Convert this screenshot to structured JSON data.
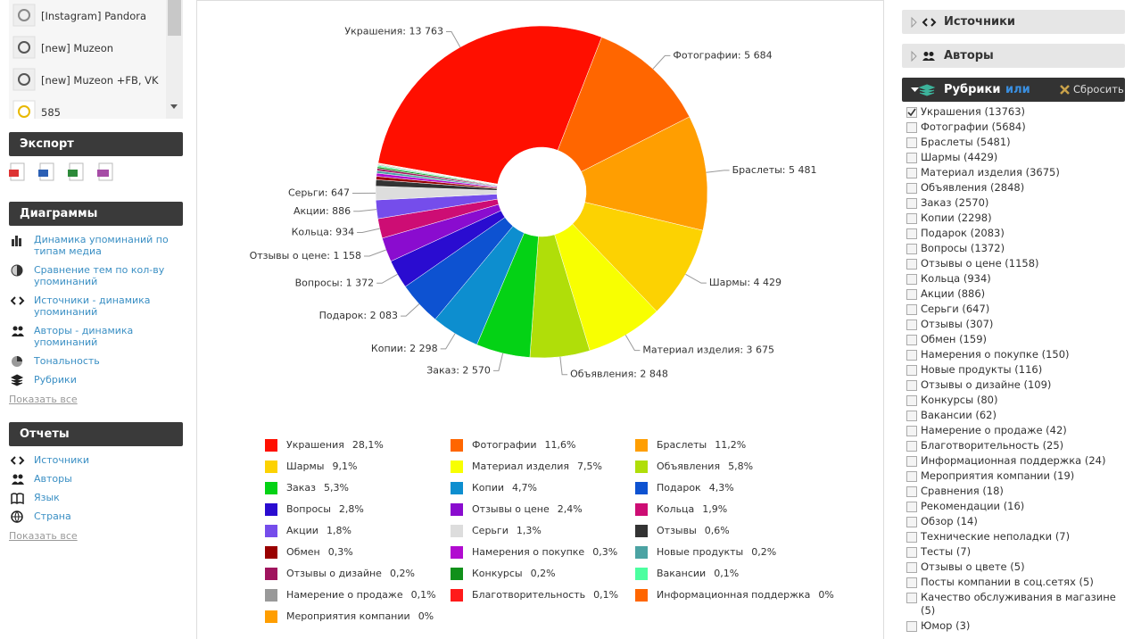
{
  "sidebar": {
    "sources": [
      "[Instagram] Pandora",
      "[new] Muzeon",
      "[new] Muzeon +FB, VK",
      "585"
    ],
    "export": {
      "title": "Экспорт"
    },
    "charts": {
      "title": "Диаграммы",
      "links": [
        "Динамика упоминаний по типам медиа",
        "Сравнение тем по кол-ву упоминаний",
        "Источники - динамика упоминаний",
        "Авторы - динамика упоминаний",
        "Тональность",
        "Рубрики"
      ],
      "show_all": "Показать все"
    },
    "reports": {
      "title": "Отчеты",
      "links": [
        "Источники",
        "Авторы",
        "Язык",
        "Страна"
      ],
      "show_all": "Показать все"
    }
  },
  "filters": {
    "sources": "Источники",
    "authors": "Авторы",
    "rubrics": {
      "title": "Рубрики",
      "mode": "или",
      "reset": "Сбросить",
      "checked": [
        0
      ],
      "items": [
        "Украшения (13763)",
        "Фотографии (5684)",
        "Браслеты (5481)",
        "Шармы (4429)",
        "Материал изделия (3675)",
        "Объявления (2848)",
        "Заказ (2570)",
        "Копии (2298)",
        "Подарок (2083)",
        "Вопросы (1372)",
        "Отзывы о цене (1158)",
        "Кольца (934)",
        "Акции (886)",
        "Серьги (647)",
        "Отзывы (307)",
        "Обмен (159)",
        "Намерения о покупке (150)",
        "Новые продукты (116)",
        "Отзывы о дизайне (109)",
        "Конкурсы  (80)",
        "Вакансии (62)",
        "Намерение о продаже (42)",
        "Благотворительность (25)",
        "Информационная поддержка (24)",
        "Мероприятия компании (19)",
        "Сравнения (18)",
        "Рекомендации (16)",
        "Обзор (14)",
        "Технические неполадки (7)",
        "Тесты (7)",
        "Отзывы о цвете (5)",
        "Посты компании в соц.сетях (5)",
        "Качество обслуживания в магазине (5)",
        "Юмор (3)"
      ]
    }
  },
  "chart_data": {
    "type": "pie",
    "donut": true,
    "categories": [
      "Украшения",
      "Фотографии",
      "Браслеты",
      "Шармы",
      "Материал изделия",
      "Объявления",
      "Заказ",
      "Копии",
      "Подарок",
      "Вопросы",
      "Отзывы о цене",
      "Кольца",
      "Акции",
      "Серьги",
      "Отзывы",
      "Обмен",
      "Намерения о покупке",
      "Новые продукты",
      "Отзывы о дизайне",
      "Конкурсы",
      "Вакансии",
      "Намерение о продаже",
      "Благотворительность",
      "Информационная поддержка",
      "Мероприятия компании"
    ],
    "values": [
      13763,
      5684,
      5481,
      4429,
      3675,
      2848,
      2570,
      2298,
      2083,
      1372,
      1158,
      934,
      886,
      647,
      307,
      159,
      150,
      116,
      109,
      80,
      62,
      42,
      25,
      24,
      19
    ],
    "value_labels": [
      "Украшения: 13 763",
      "Фотографии: 5 684",
      "Браслеты: 5 481",
      "Шармы: 4 429",
      "Материал изделия: 3 675",
      "Объявления: 2 848",
      "Заказ: 2 570",
      "Копии: 2 298",
      "Подарок: 2 083",
      "Вопросы: 1 372",
      "Отзывы о цене: 1 158",
      "Кольца: 934",
      "Акции: 886",
      "Серьги: 647",
      null,
      null,
      null,
      null,
      null,
      null,
      null,
      null,
      null,
      null,
      null
    ],
    "legend_values": [
      "28,1%",
      "11,6%",
      "11,2%",
      "9,1%",
      "7,5%",
      "5,8%",
      "5,3%",
      "4,7%",
      "4,3%",
      "2,8%",
      "2,4%",
      "1,9%",
      "1,8%",
      "1,3%",
      "0,6%",
      "0,3%",
      "0,3%",
      "0,2%",
      "0,2%",
      "0,2%",
      "0,1%",
      "0,1%",
      "0,1%",
      "0%",
      "0%"
    ],
    "colors": [
      "#ff0f00",
      "#ff6600",
      "#ff9e01",
      "#fcd202",
      "#f8ff01",
      "#b0de09",
      "#04d215",
      "#0d8ecf",
      "#0d52d1",
      "#2a0cd0",
      "#8a0ccf",
      "#cd0d74",
      "#754deb",
      "#dddddd",
      "#333333",
      "#990000",
      "#b10bd0",
      "#4ba3a3",
      "#a0145e",
      "#11901a",
      "#4cffa0",
      "#999999",
      "#ff1a1a",
      "#ff6600",
      "#ff9e01"
    ],
    "legend": "bottom"
  }
}
